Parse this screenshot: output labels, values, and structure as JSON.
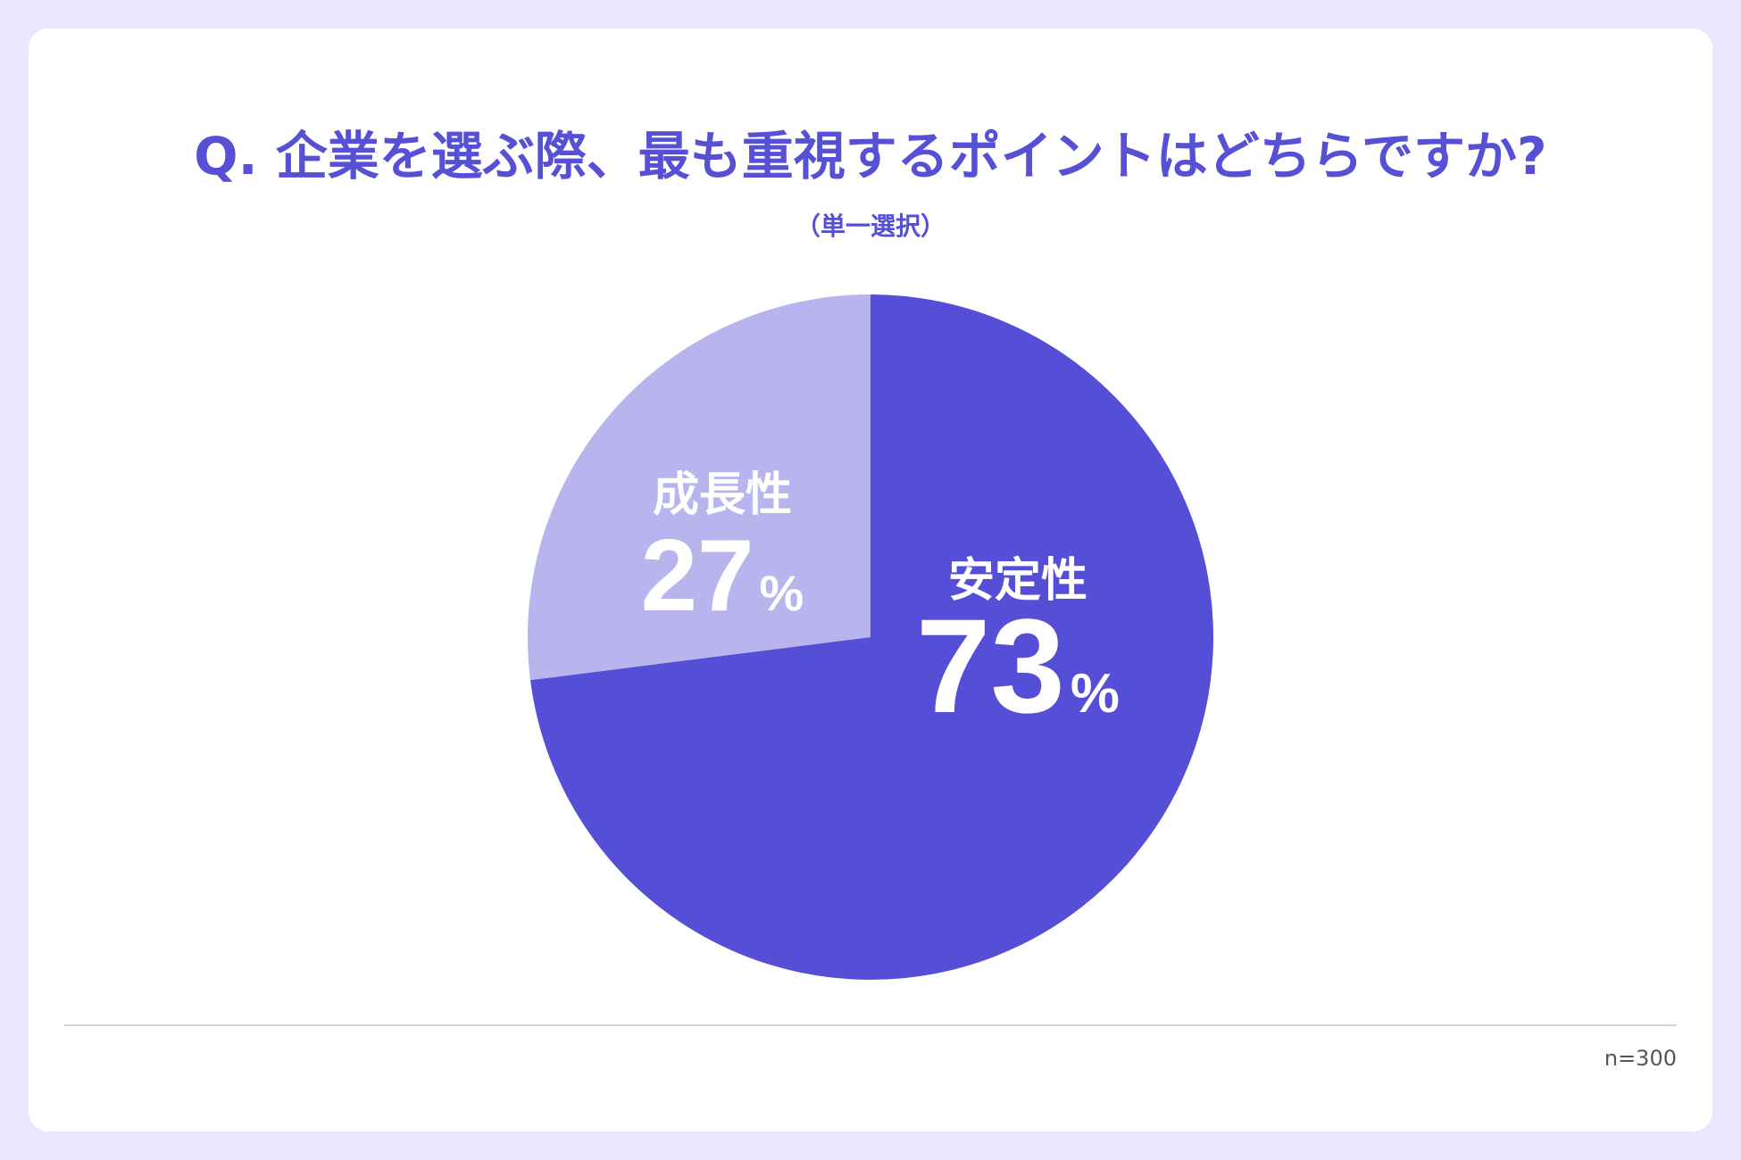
{
  "title": "Q. 企業を選ぶ際、最も重視するポイントはどちらですか?",
  "subtitle": "（単一選択）",
  "note": "n=300",
  "colors": {
    "primary": "#544fd6",
    "secondary": "#b8b5ee",
    "background": "#ebe6fb",
    "label": "#ffffff"
  },
  "chart_data": {
    "type": "pie",
    "slices": [
      {
        "label": "安定性",
        "value": 73,
        "value_label": "73",
        "unit": "%",
        "color": "#544fd6"
      },
      {
        "label": "成長性",
        "value": 27,
        "value_label": "27",
        "unit": "%",
        "color": "#b8b5ee"
      }
    ],
    "start": "12 o'clock",
    "direction": "clockwise"
  }
}
